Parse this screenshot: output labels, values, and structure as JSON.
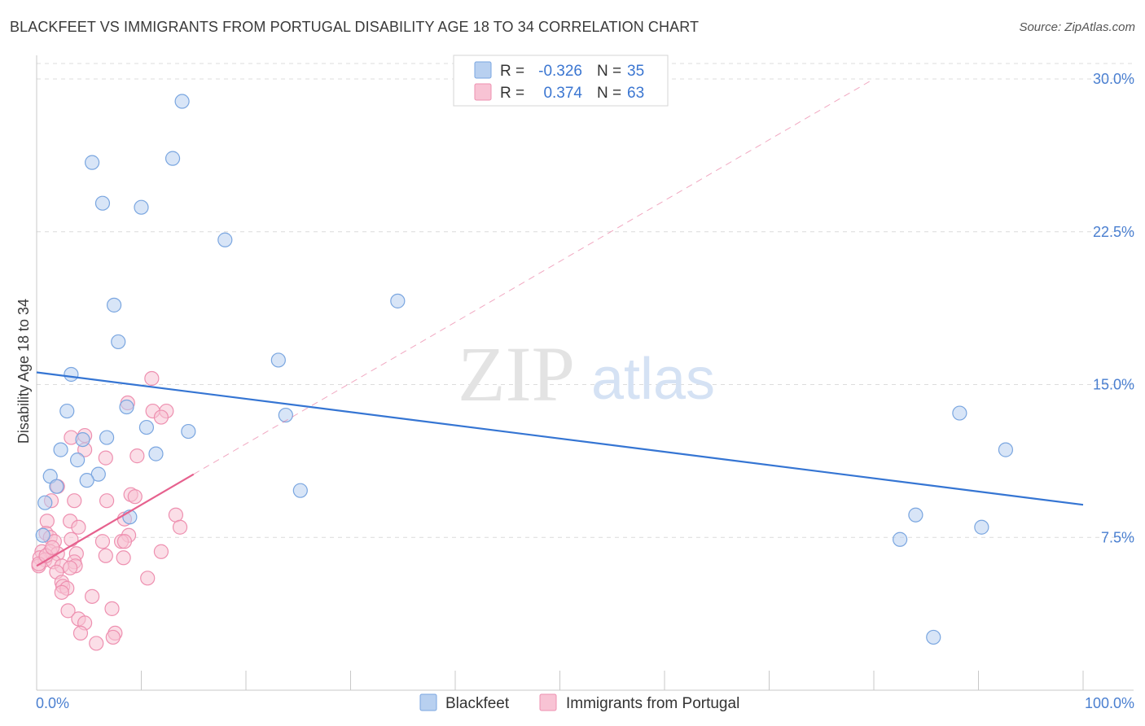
{
  "title": "BLACKFEET VS IMMIGRANTS FROM PORTUGAL DISABILITY AGE 18 TO 34 CORRELATION CHART",
  "source": "Source: ZipAtlas.com",
  "watermark": {
    "zip": "ZIP",
    "atlas": "atlas"
  },
  "colors": {
    "blue_fill": "#b8d0f0",
    "blue_stroke": "#7aa6e0",
    "blue_line": "#3575d3",
    "pink_fill": "#f8c3d4",
    "pink_stroke": "#ee90b0",
    "pink_line": "#e6618e",
    "grid": "#dcdcdc",
    "tick_text": "#4a7fd0"
  },
  "legend": {
    "rows": [
      {
        "r_label": "R =",
        "r_value": "-0.326",
        "n_label": "N =",
        "n_value": "35",
        "series": "blue"
      },
      {
        "r_label": "R =",
        "r_value": "0.374",
        "n_label": "N =",
        "n_value": "63",
        "series": "pink"
      }
    ]
  },
  "bottom_legend": [
    "Blackfeet",
    "Immigrants from Portugal"
  ],
  "chart_data": {
    "type": "scatter",
    "title": "BLACKFEET VS IMMIGRANTS FROM PORTUGAL DISABILITY AGE 18 TO 34 CORRELATION CHART",
    "xlabel": "",
    "ylabel": "Disability Age 18 to 34",
    "xlim": [
      0,
      100
    ],
    "ylim": [
      0,
      30.5
    ],
    "x_tick_labels": [
      "0.0%",
      "100.0%"
    ],
    "y_ticks": [
      7.5,
      15.0,
      22.5,
      30.0
    ],
    "y_tick_labels": [
      "7.5%",
      "15.0%",
      "22.5%",
      "30.0%"
    ],
    "series": [
      {
        "name": "Blackfeet",
        "color": "blue",
        "r": -0.326,
        "n": 35,
        "trend": {
          "x": [
            0,
            100
          ],
          "y": [
            15.6,
            9.1
          ],
          "style": "solid"
        },
        "points": [
          [
            13.9,
            28.9
          ],
          [
            5.3,
            25.9
          ],
          [
            13.0,
            26.1
          ],
          [
            6.3,
            23.9
          ],
          [
            10.0,
            23.7
          ],
          [
            18.0,
            22.1
          ],
          [
            7.4,
            18.9
          ],
          [
            7.8,
            17.1
          ],
          [
            34.5,
            19.1
          ],
          [
            23.1,
            16.2
          ],
          [
            3.3,
            15.5
          ],
          [
            2.9,
            13.7
          ],
          [
            8.6,
            13.9
          ],
          [
            10.5,
            12.9
          ],
          [
            14.5,
            12.7
          ],
          [
            6.7,
            12.4
          ],
          [
            4.4,
            12.3
          ],
          [
            2.3,
            11.8
          ],
          [
            11.4,
            11.6
          ],
          [
            3.9,
            11.3
          ],
          [
            1.3,
            10.5
          ],
          [
            5.9,
            10.6
          ],
          [
            4.8,
            10.3
          ],
          [
            1.9,
            10.0
          ],
          [
            23.8,
            13.5
          ],
          [
            25.2,
            9.8
          ],
          [
            0.8,
            9.2
          ],
          [
            8.9,
            8.5
          ],
          [
            0.6,
            7.6
          ],
          [
            88.2,
            13.6
          ],
          [
            92.6,
            11.8
          ],
          [
            84.0,
            8.6
          ],
          [
            90.3,
            8.0
          ],
          [
            82.5,
            7.4
          ],
          [
            85.7,
            2.6
          ]
        ]
      },
      {
        "name": "Immigrants from Portugal",
        "color": "pink",
        "r": 0.374,
        "n": 63,
        "trend": {
          "x": [
            0,
            15
          ],
          "y": [
            6.1,
            10.6
          ],
          "style": "solid",
          "extension": {
            "x": [
              15,
              80
            ],
            "y": [
              10.6,
              30.0
            ],
            "style": "dashed"
          }
        },
        "points": [
          [
            11.0,
            15.3
          ],
          [
            8.7,
            14.1
          ],
          [
            12.4,
            13.7
          ],
          [
            11.1,
            13.7
          ],
          [
            11.9,
            13.4
          ],
          [
            3.3,
            12.4
          ],
          [
            4.6,
            12.5
          ],
          [
            4.6,
            11.8
          ],
          [
            6.6,
            11.4
          ],
          [
            9.6,
            11.5
          ],
          [
            2.0,
            10.0
          ],
          [
            9.0,
            9.6
          ],
          [
            9.4,
            9.5
          ],
          [
            1.4,
            9.3
          ],
          [
            3.6,
            9.3
          ],
          [
            6.7,
            9.3
          ],
          [
            13.3,
            8.6
          ],
          [
            8.4,
            8.4
          ],
          [
            1.0,
            8.3
          ],
          [
            3.2,
            8.3
          ],
          [
            4.0,
            8.0
          ],
          [
            13.7,
            8.0
          ],
          [
            0.9,
            7.7
          ],
          [
            8.8,
            7.6
          ],
          [
            1.3,
            7.5
          ],
          [
            1.7,
            7.3
          ],
          [
            3.3,
            7.4
          ],
          [
            6.3,
            7.3
          ],
          [
            8.1,
            7.3
          ],
          [
            8.4,
            7.3
          ],
          [
            0.5,
            6.8
          ],
          [
            1.3,
            6.8
          ],
          [
            2.0,
            6.7
          ],
          [
            3.8,
            6.7
          ],
          [
            6.6,
            6.6
          ],
          [
            11.9,
            6.8
          ],
          [
            8.3,
            6.5
          ],
          [
            0.3,
            6.5
          ],
          [
            0.8,
            6.4
          ],
          [
            1.6,
            6.3
          ],
          [
            3.6,
            6.3
          ],
          [
            3.7,
            6.1
          ],
          [
            0.2,
            6.1
          ],
          [
            2.4,
            6.1
          ],
          [
            3.2,
            6.0
          ],
          [
            1.9,
            5.8
          ],
          [
            10.6,
            5.5
          ],
          [
            2.4,
            5.3
          ],
          [
            2.5,
            5.1
          ],
          [
            2.9,
            5.0
          ],
          [
            2.4,
            4.8
          ],
          [
            5.3,
            4.6
          ],
          [
            7.2,
            4.0
          ],
          [
            3.0,
            3.9
          ],
          [
            4.0,
            3.5
          ],
          [
            4.6,
            3.3
          ],
          [
            4.2,
            2.8
          ],
          [
            7.5,
            2.8
          ],
          [
            7.3,
            2.6
          ],
          [
            5.7,
            2.3
          ],
          [
            0.2,
            6.2
          ],
          [
            0.9,
            6.6
          ],
          [
            1.5,
            7.0
          ]
        ]
      }
    ]
  }
}
